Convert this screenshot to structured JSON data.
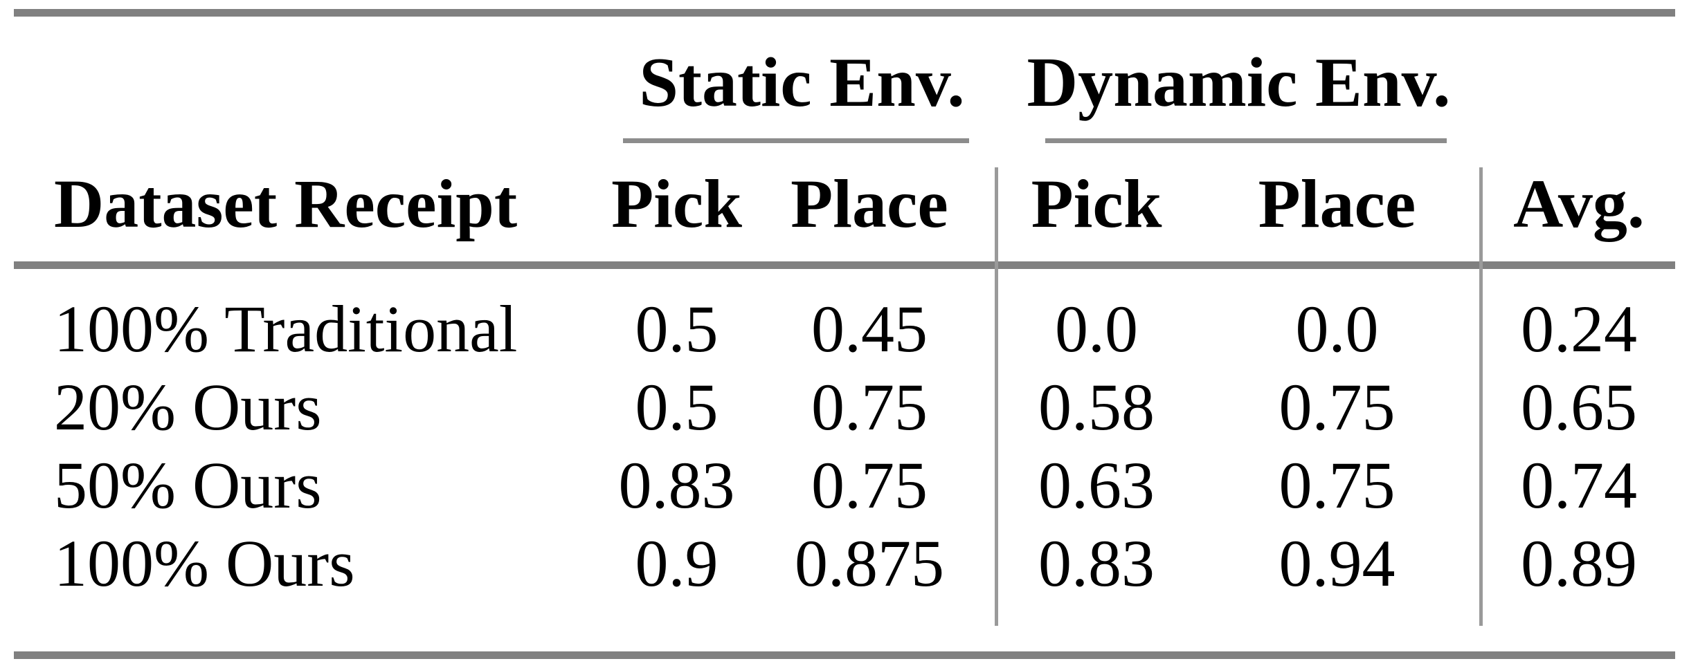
{
  "page": {
    "background": "#ffffff"
  },
  "table": {
    "group_headers": {
      "static": "Static Env.",
      "dynamic": "Dynamic Env."
    },
    "column_headers": {
      "dataset": "Dataset Receipt",
      "static_pick": "Pick",
      "static_place": "Place",
      "dynamic_pick": "Pick",
      "dynamic_place": "Place",
      "avg": "Avg."
    },
    "rows": [
      {
        "dataset": "100% Traditional",
        "static_pick": "0.5",
        "static_place": "0.45",
        "dynamic_pick": "0.0",
        "dynamic_place": "0.0",
        "avg": "0.24"
      },
      {
        "dataset": "20% Ours",
        "static_pick": "0.5",
        "static_place": "0.75",
        "dynamic_pick": "0.58",
        "dynamic_place": "0.75",
        "avg": "0.65"
      },
      {
        "dataset": "50% Ours",
        "static_pick": "0.83",
        "static_place": "0.75",
        "dynamic_pick": "0.63",
        "dynamic_place": "0.75",
        "avg": "0.74"
      },
      {
        "dataset": "100% Ours",
        "static_pick": "0.9",
        "static_place": "0.875",
        "dynamic_pick": "0.83",
        "dynamic_place": "0.94",
        "avg": "0.89"
      }
    ],
    "colors": {
      "heavy_rule": "#808080",
      "light_rule": "#9a9a9a",
      "text": "#000000",
      "background": "#ffffff"
    }
  },
  "chart_data": {
    "type": "table",
    "title": "",
    "group_columns": [
      {
        "label": "Static Env.",
        "spans": [
          "Pick",
          "Place"
        ]
      },
      {
        "label": "Dynamic Env.",
        "spans": [
          "Pick",
          "Place"
        ]
      }
    ],
    "columns": [
      "Dataset Receipt",
      "Static Env. Pick",
      "Static Env. Place",
      "Dynamic Env. Pick",
      "Dynamic Env. Place",
      "Avg."
    ],
    "rows": [
      [
        "100% Traditional",
        0.5,
        0.45,
        0.0,
        0.0,
        0.24
      ],
      [
        "20% Ours",
        0.5,
        0.75,
        0.58,
        0.75,
        0.65
      ],
      [
        "50% Ours",
        0.83,
        0.75,
        0.63,
        0.75,
        0.74
      ],
      [
        "100% Ours",
        0.9,
        0.875,
        0.83,
        0.94,
        0.89
      ]
    ]
  }
}
